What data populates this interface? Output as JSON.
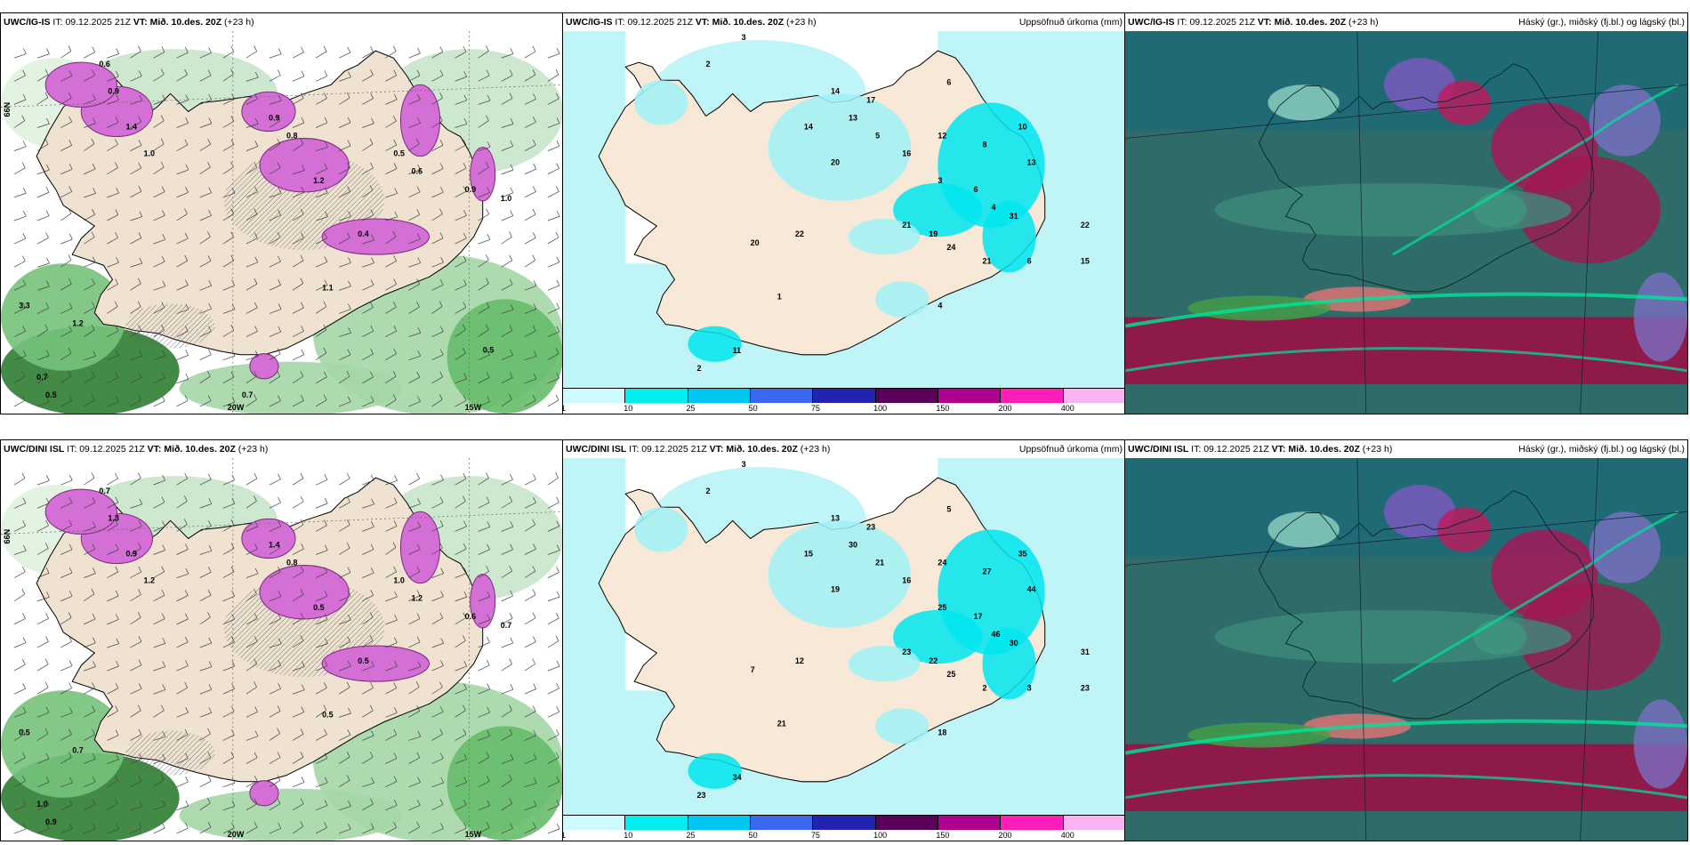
{
  "colorbar": {
    "ticks": [
      "1",
      "10",
      "25",
      "50",
      "75",
      "100",
      "150",
      "200",
      "400"
    ],
    "colors": [
      "#cdfaff",
      "#00eeee",
      "#00c5ee",
      "#3a68ee",
      "#2224b0",
      "#5a005a",
      "#b00090",
      "#ff1fb8",
      "#f9b3f0"
    ]
  },
  "rows": [
    {
      "model": "UWC/IG-IS",
      "it_label": "IT:",
      "it_value": "09.12.2025 21Z",
      "vt_label": "VT:",
      "vt_value": "Mið. 10.des. 20Z",
      "lead": "(+23 h)",
      "precip_title": "Uppsöfnuð úrkoma (mm)",
      "cloud_title": "Háský (gr.), miðský (fj.bl.) og lágský (bl.)",
      "wind_labels": [
        "0.6",
        "0.9",
        "1.4",
        "1.0",
        "0.9",
        "0.8",
        "1.2",
        "0.5",
        "0.6",
        "0.9",
        "0.4",
        "1.0",
        "1.1",
        "0.7",
        "0.5",
        "3.3",
        "1.2",
        "0.7",
        "0.5"
      ],
      "grid_labels": [
        "66N",
        "20W",
        "15W"
      ],
      "precip_values": [
        "3",
        "2",
        "6",
        "14",
        "17",
        "13",
        "14",
        "5",
        "12",
        "8",
        "16",
        "20",
        "3",
        "6",
        "4",
        "10",
        "13",
        "31",
        "21",
        "19",
        "24",
        "22",
        "20",
        "11",
        "2",
        "1",
        "4",
        "21",
        "6",
        "22",
        "15"
      ]
    },
    {
      "model": "UWC/DINI ISL",
      "it_label": "IT:",
      "it_value": "09.12.2025 21Z",
      "vt_label": "VT:",
      "vt_value": "Mið. 10.des. 20Z",
      "lead": "(+23 h)",
      "precip_title": "Uppsöfnuð úrkoma (mm)",
      "cloud_title": "Háský (gr.), miðský (fj.bl.) og lágský (bl.)",
      "wind_labels": [
        "0.7",
        "1.3",
        "0.9",
        "1.2",
        "1.4",
        "0.8",
        "0.5",
        "1.0",
        "1.2",
        "0.6",
        "0.5",
        "0.7",
        "0.5",
        "1.0",
        "0.9",
        "0.5",
        "0.7"
      ],
      "grid_labels": [
        "66N",
        "20W",
        "15W"
      ],
      "precip_values": [
        "3",
        "2",
        "5",
        "13",
        "23",
        "30",
        "15",
        "21",
        "24",
        "27",
        "16",
        "19",
        "25",
        "17",
        "46",
        "35",
        "44",
        "30",
        "23",
        "22",
        "25",
        "12",
        "7",
        "34",
        "23",
        "21",
        "18",
        "2",
        "3",
        "31",
        "23"
      ]
    }
  ]
}
